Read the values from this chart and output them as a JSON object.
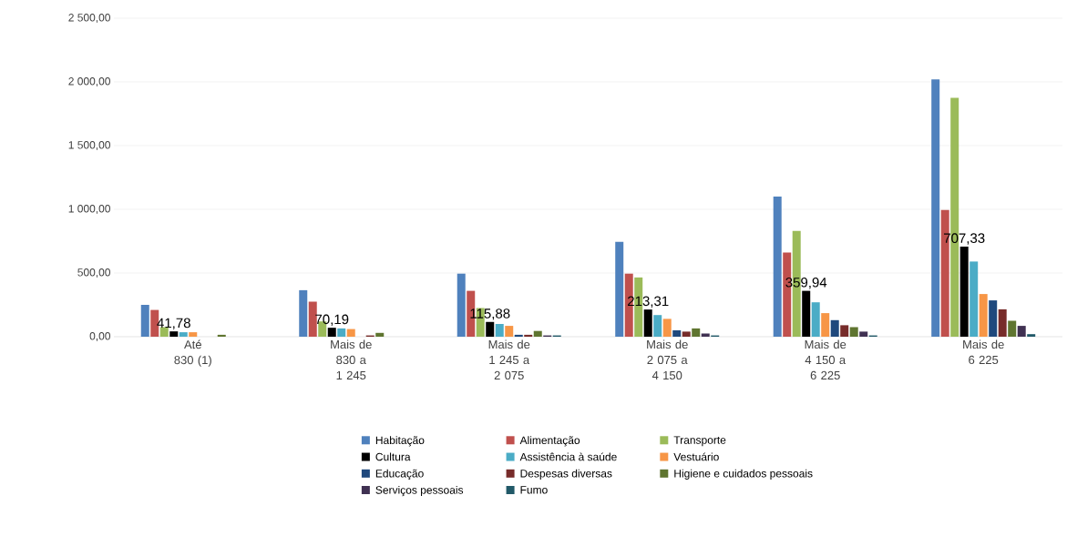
{
  "chart_data": {
    "type": "bar",
    "categories": [
      "Até 830 (1)",
      "Mais de 830 a 1 245",
      "Mais de 1 245 a 2 075",
      "Mais de 2 075 a 4 150",
      "Mais de 4 150 a 6 225",
      "Mais de 6 225"
    ],
    "ylim": [
      0,
      2500
    ],
    "yticks": [
      {
        "value": 0,
        "label": "0,00"
      },
      {
        "value": 500,
        "label": "500,00"
      },
      {
        "value": 1000,
        "label": "1 000,00"
      },
      {
        "value": 1500,
        "label": "1 500,00"
      },
      {
        "value": 2000,
        "label": "2 000,00"
      },
      {
        "value": 2500,
        "label": "2 500,00"
      }
    ],
    "grid": "y",
    "legend": "bottom",
    "series": [
      {
        "name": "Habitação",
        "color": "#4f81bd",
        "values": [
          250,
          365,
          495,
          745,
          1100,
          2020
        ]
      },
      {
        "name": "Alimentação",
        "color": "#c0504d",
        "values": [
          210,
          275,
          360,
          495,
          660,
          995
        ]
      },
      {
        "name": "Transporte",
        "color": "#9bbb59",
        "values": [
          75,
          120,
          225,
          465,
          830,
          1875
        ]
      },
      {
        "name": "Cultura",
        "color": "#000000",
        "values": [
          41.78,
          70.19,
          115.88,
          213.31,
          359.94,
          707.33
        ],
        "value_labels": [
          "41,78",
          "70,19",
          "115,88",
          "213,31",
          "359,94",
          "707,33"
        ]
      },
      {
        "name": "Assistência à saúde",
        "color": "#4bacc6",
        "values": [
          35,
          65,
          100,
          170,
          270,
          590
        ]
      },
      {
        "name": "Vestuário",
        "color": "#f79646",
        "values": [
          35,
          60,
          85,
          140,
          185,
          335
        ]
      },
      {
        "name": "Educação",
        "color": "#1f497d",
        "values": [
          0,
          0,
          15,
          50,
          130,
          285
        ]
      },
      {
        "name": "Despesas diversas",
        "color": "#772c2a",
        "values": [
          0,
          10,
          15,
          40,
          90,
          215
        ]
      },
      {
        "name": "Higiene e cuidados pessoais",
        "color": "#5f7530",
        "values": [
          15,
          30,
          45,
          65,
          75,
          125
        ]
      },
      {
        "name": "Serviços pessoais",
        "color": "#403152",
        "values": [
          0,
          0,
          10,
          25,
          40,
          85
        ]
      },
      {
        "name": "Fumo",
        "color": "#215968",
        "values": [
          0,
          0,
          10,
          10,
          10,
          20
        ]
      }
    ]
  }
}
